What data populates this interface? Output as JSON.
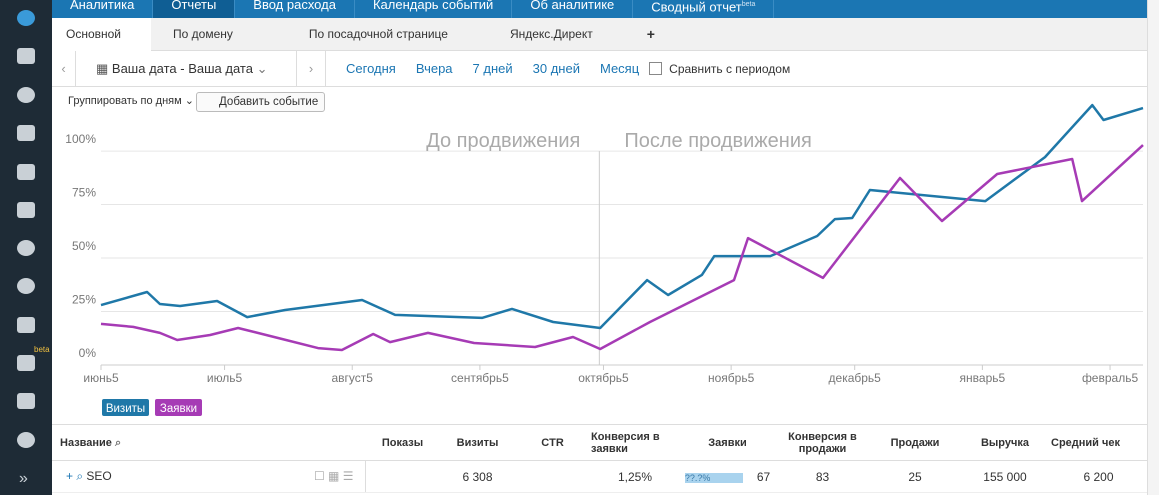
{
  "nav": {
    "tabs": [
      "Аналитика",
      "Отчеты",
      "Ввод расхода",
      "Календарь событий",
      "Об аналитике",
      "Сводный отчет"
    ],
    "beta": "beta"
  },
  "sidebar_beta": "beta",
  "subtabs": [
    "Основной",
    "По домену",
    "По посадочной странице",
    "Яндекс.Директ",
    "+"
  ],
  "toolbar": {
    "date": "Ваша дата - Ваша дата",
    "periods": [
      "Сегодня",
      "Вчера",
      "7 дней",
      "30 дней",
      "Месяц"
    ],
    "compare": "Сравнить с периодом",
    "group": "Группировать по дням",
    "add_event": "Добавить событие"
  },
  "chart_data": {
    "type": "line",
    "annotations": [
      "До продвижения",
      "После продвижения"
    ],
    "divider": 121,
    "xlim": [
      0,
      253
    ],
    "xticks": [
      {
        "value": 0,
        "label": "июнь5"
      },
      {
        "value": 30,
        "label": "июль5"
      },
      {
        "value": 61,
        "label": "август5"
      },
      {
        "value": 92,
        "label": "сентябрь5"
      },
      {
        "value": 122,
        "label": "октябрь5"
      },
      {
        "value": 153,
        "label": "ноябрь5"
      },
      {
        "value": 183,
        "label": "декабрь5"
      },
      {
        "value": 214,
        "label": "январь5"
      },
      {
        "value": 245,
        "label": "февраль5"
      }
    ],
    "ylim": [
      0,
      122
    ],
    "yticks": [
      {
        "value": 0,
        "label": "0%"
      },
      {
        "value": 25,
        "label": "25%"
      },
      {
        "value": 50,
        "label": "50%"
      },
      {
        "value": 75,
        "label": "75%"
      },
      {
        "value": 100,
        "label": "100%"
      }
    ],
    "grid": true,
    "series": [
      {
        "name": "Визиты",
        "color": "#1f78a8",
        "x": [
          0,
          11.2,
          14.3,
          19.2,
          28.2,
          35.5,
          44.7,
          63.4,
          71.4,
          92.5,
          99.8,
          109.8,
          121.2,
          132.6,
          137.7,
          145.9,
          148.9,
          162.5,
          173.9,
          178.2,
          182.4,
          186.7,
          214.7,
          229.2,
          240.7,
          243.4,
          253
        ],
        "values": [
          28,
          34.1,
          28.5,
          27.6,
          29.9,
          22.4,
          25.7,
          30.4,
          23.4,
          22,
          26.2,
          20.1,
          17.3,
          39.7,
          32.7,
          42.1,
          50.9,
          50.9,
          60.3,
          68.2,
          68.7,
          81.8,
          76.6,
          97.2,
          121.5,
          114.5,
          120.1
        ]
      },
      {
        "name": "Заявки",
        "color": "#a63bb5",
        "x": [
          0,
          7.8,
          14.3,
          18.5,
          26.5,
          33.3,
          43,
          52.7,
          58.5,
          66.1,
          70.2,
          79.4,
          90.6,
          105.4,
          114.6,
          121.2,
          133.3,
          153.7,
          157.1,
          175.3,
          194,
          204.2,
          217.6,
          235.8,
          238.2,
          253
        ],
        "values": [
          19.2,
          17.8,
          15,
          11.7,
          14,
          17.3,
          12.6,
          7.9,
          7,
          14.5,
          10.7,
          15,
          10.3,
          8.4,
          13.1,
          7.5,
          20.1,
          39.7,
          59.3,
          40.7,
          87.4,
          67.3,
          89.3,
          96.3,
          76.6,
          102.8
        ]
      }
    ]
  },
  "table": {
    "headers": [
      "Название",
      "Показы",
      "Визиты",
      "CTR",
      "Конверсия в заявки",
      "Заявки",
      "Конверсия в продажи",
      "Продажи",
      "Выручка",
      "Средний чек"
    ],
    "row": {
      "name": "SEO",
      "visits": "6 308",
      "conv_leads": "1,25%",
      "leads_bar": "??.?%",
      "leads": "67",
      "conv_sales": "83",
      "sales": "25",
      "revenue": "155 000",
      "avg_check": "6 200"
    }
  }
}
